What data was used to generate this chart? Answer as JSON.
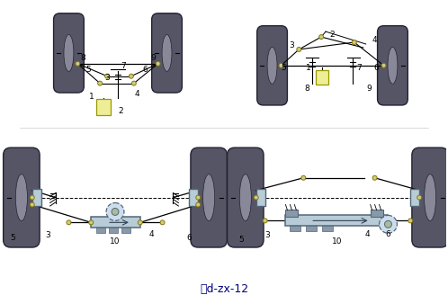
{
  "caption": "囬d-zx-12",
  "title_color": "#000080",
  "bg_color": "#ffffff",
  "lc": "#000000",
  "wheel_color": "#555566",
  "wheel_inner": "#888899",
  "wheel_edge": "#222233",
  "rack_fill": "#b8ccd8",
  "rack_edge": "#556677",
  "yellow": "#eeee99",
  "yellow_edge": "#999900",
  "joint_fill": "#cccc88",
  "joint_edge": "#887700",
  "ls": 6.5
}
